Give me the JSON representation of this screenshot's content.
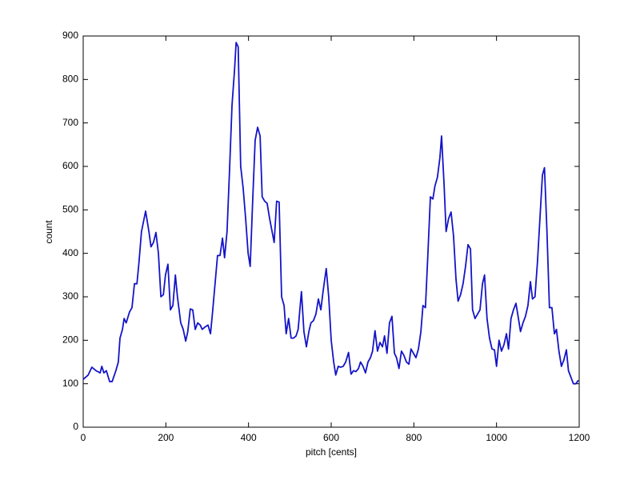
{
  "chart_data": {
    "type": "line",
    "xlabel": "pitch [cents]",
    "ylabel": "count",
    "color": "#1414c8",
    "xlim": [
      0,
      1200
    ],
    "ylim": [
      0,
      900
    ],
    "xticks": [
      0,
      200,
      400,
      600,
      800,
      1000,
      1200
    ],
    "yticks": [
      0,
      100,
      200,
      300,
      400,
      500,
      600,
      700,
      800,
      900
    ],
    "x": [
      0,
      12,
      21,
      31,
      41,
      45,
      50,
      56,
      64,
      70,
      79,
      85,
      89,
      95,
      99,
      104,
      112,
      118,
      124,
      130,
      135,
      141,
      151,
      159,
      164,
      170,
      176,
      182,
      188,
      194,
      199,
      205,
      211,
      217,
      223,
      228,
      236,
      242,
      248,
      253,
      259,
      265,
      271,
      277,
      283,
      288,
      294,
      302,
      308,
      313,
      319,
      325,
      331,
      337,
      342,
      348,
      354,
      360,
      366,
      370,
      375,
      381,
      387,
      393,
      399,
      404,
      410,
      416,
      422,
      428,
      433,
      439,
      445,
      451,
      457,
      462,
      468,
      474,
      480,
      486,
      491,
      497,
      503,
      509,
      515,
      520,
      528,
      534,
      540,
      546,
      551,
      557,
      563,
      569,
      575,
      580,
      588,
      594,
      600,
      606,
      611,
      617,
      623,
      629,
      635,
      642,
      648,
      654,
      660,
      666,
      671,
      677,
      683,
      689,
      695,
      700,
      706,
      712,
      718,
      724,
      729,
      735,
      741,
      747,
      753,
      758,
      764,
      770,
      776,
      782,
      788,
      793,
      799,
      805,
      811,
      817,
      822,
      828,
      834,
      840,
      846,
      851,
      857,
      863,
      867,
      873,
      878,
      884,
      890,
      896,
      902,
      907,
      913,
      919,
      925,
      931,
      937,
      942,
      948,
      954,
      960,
      966,
      971,
      977,
      983,
      989,
      995,
      1000,
      1006,
      1012,
      1018,
      1024,
      1029,
      1035,
      1041,
      1047,
      1053,
      1058,
      1064,
      1070,
      1076,
      1082,
      1087,
      1093,
      1099,
      1105,
      1111,
      1116,
      1122,
      1128,
      1134,
      1140,
      1145,
      1151,
      1157,
      1163,
      1169,
      1174,
      1180,
      1186,
      1192,
      1198
    ],
    "values": [
      110,
      120,
      138,
      130,
      125,
      140,
      125,
      130,
      105,
      105,
      130,
      150,
      205,
      225,
      250,
      240,
      265,
      275,
      330,
      330,
      380,
      450,
      497,
      450,
      415,
      425,
      448,
      400,
      300,
      305,
      350,
      375,
      270,
      280,
      350,
      300,
      240,
      225,
      198,
      220,
      272,
      270,
      225,
      240,
      235,
      225,
      230,
      235,
      215,
      265,
      330,
      395,
      395,
      435,
      390,
      450,
      590,
      740,
      820,
      885,
      875,
      600,
      550,
      480,
      400,
      370,
      520,
      660,
      690,
      670,
      530,
      520,
      515,
      480,
      450,
      425,
      520,
      518,
      300,
      280,
      215,
      250,
      205,
      205,
      210,
      225,
      312,
      220,
      185,
      220,
      240,
      245,
      260,
      295,
      270,
      310,
      365,
      300,
      200,
      150,
      120,
      140,
      138,
      140,
      150,
      172,
      122,
      130,
      128,
      135,
      150,
      140,
      125,
      150,
      160,
      175,
      222,
      175,
      195,
      185,
      210,
      170,
      240,
      255,
      170,
      160,
      135,
      175,
      165,
      150,
      145,
      180,
      170,
      160,
      180,
      220,
      280,
      275,
      400,
      530,
      525,
      555,
      575,
      620,
      670,
      560,
      450,
      480,
      495,
      440,
      340,
      290,
      305,
      330,
      370,
      420,
      410,
      270,
      250,
      260,
      270,
      330,
      350,
      250,
      205,
      180,
      178,
      140,
      200,
      175,
      190,
      215,
      180,
      250,
      270,
      285,
      250,
      220,
      240,
      255,
      280,
      335,
      295,
      300,
      380,
      480,
      580,
      597,
      450,
      275,
      275,
      215,
      225,
      175,
      140,
      155,
      178,
      130,
      115,
      100,
      100,
      108
    ]
  }
}
